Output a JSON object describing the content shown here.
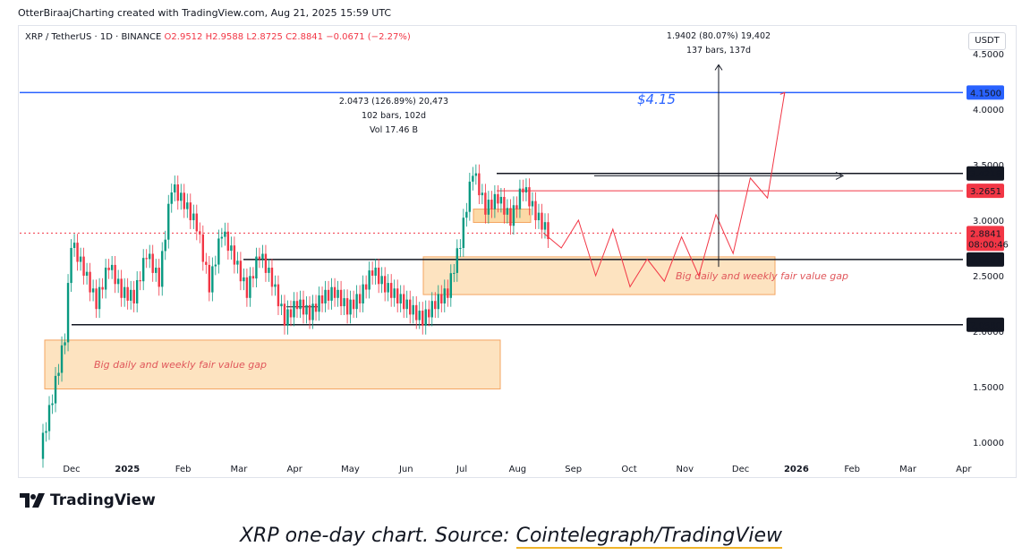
{
  "header": {
    "credit": "OtterBiraajCharting created with TradingView.com, Aug 21, 2025 15:59 UTC"
  },
  "symbol": {
    "name": "XRP / TetherUS · 1D · BINANCE",
    "open": "O2.9512",
    "high": "H2.9588",
    "low": "L2.8725",
    "close": "C2.8841",
    "change": "−0.0671 (−2.27%)"
  },
  "currency": "USDT",
  "chart_data": {
    "type": "candlestick",
    "x_labels": [
      "Dec",
      "2025",
      "Feb",
      "Mar",
      "Apr",
      "May",
      "Jun",
      "Jul",
      "Aug",
      "Sep",
      "Oct",
      "Nov",
      "Dec",
      "2026",
      "Feb",
      "Mar",
      "Apr"
    ],
    "y_ticks": [
      "1.0000",
      "1.5000",
      "2.0000",
      "2.5000",
      "3.0000",
      "3.5000",
      "4.0000",
      "4.5000"
    ],
    "ylim": [
      0.87,
      4.65
    ],
    "price_levels": [
      {
        "label": "4.1500",
        "value": 4.15,
        "color": "#2962ff"
      },
      {
        "label": "3.4218",
        "value": 3.4218,
        "color": "#131722"
      },
      {
        "label": "3.2651",
        "value": 3.2651,
        "color": "#f23645"
      },
      {
        "label": "2.6461",
        "value": 2.6461,
        "color": "#131722"
      },
      {
        "label": "2.0580",
        "value": 2.058,
        "color": "#131722"
      }
    ],
    "last_price": {
      "label": "2.8841",
      "value": 2.8841,
      "countdown": "08:00:46",
      "color": "#f23645"
    },
    "target_label": "$4.15",
    "zones": [
      {
        "label": "Big daily and weekly fair value gap",
        "from": 1.48,
        "to": 1.92
      },
      {
        "label": "Big daily and weekly fair value gap",
        "from": 2.33,
        "to": 2.67
      }
    ],
    "measure_1": [
      "2.0473 (126.89%) 20,473",
      "102 bars, 102d",
      "Vol 17.46 B"
    ],
    "measure_2": [
      "1.9402 (80.07%) 19,402",
      "137 bars, 137d"
    ],
    "projection_path": [
      [
        0,
        2.88
      ],
      [
        1,
        2.75
      ],
      [
        2,
        3.0
      ],
      [
        3,
        2.5
      ],
      [
        4,
        2.92
      ],
      [
        5,
        2.4
      ],
      [
        6,
        2.65
      ],
      [
        7,
        2.45
      ],
      [
        8,
        2.85
      ],
      [
        9,
        2.5
      ],
      [
        10,
        3.05
      ],
      [
        11,
        2.7
      ],
      [
        12,
        3.38
      ],
      [
        13,
        3.2
      ],
      [
        14,
        4.15
      ]
    ],
    "price_path": [
      [
        0,
        0.9
      ],
      [
        4,
        1.4
      ],
      [
        8,
        1.95
      ],
      [
        10,
        2.8
      ],
      [
        14,
        2.55
      ],
      [
        18,
        2.25
      ],
      [
        22,
        2.6
      ],
      [
        26,
        2.35
      ],
      [
        30,
        2.3
      ],
      [
        34,
        2.7
      ],
      [
        38,
        2.45
      ],
      [
        42,
        3.3
      ],
      [
        46,
        3.15
      ],
      [
        50,
        2.95
      ],
      [
        54,
        2.4
      ],
      [
        58,
        2.9
      ],
      [
        62,
        2.65
      ],
      [
        66,
        2.35
      ],
      [
        70,
        2.7
      ],
      [
        74,
        2.45
      ],
      [
        78,
        2.1
      ],
      [
        82,
        2.25
      ],
      [
        86,
        2.15
      ],
      [
        90,
        2.3
      ],
      [
        94,
        2.35
      ],
      [
        98,
        2.2
      ],
      [
        102,
        2.3
      ],
      [
        106,
        2.55
      ],
      [
        110,
        2.4
      ],
      [
        114,
        2.3
      ],
      [
        118,
        2.2
      ],
      [
        122,
        2.1
      ],
      [
        126,
        2.25
      ],
      [
        130,
        2.35
      ],
      [
        134,
        2.8
      ],
      [
        138,
        3.45
      ],
      [
        142,
        3.1
      ],
      [
        146,
        3.2
      ],
      [
        150,
        3.0
      ],
      [
        154,
        3.3
      ],
      [
        158,
        3.05
      ],
      [
        162,
        2.88
      ]
    ]
  },
  "branding": {
    "name": "TradingView"
  },
  "caption": {
    "prefix": "XRP one-day chart. Source: ",
    "link": "Cointelegraph/TradingView"
  }
}
